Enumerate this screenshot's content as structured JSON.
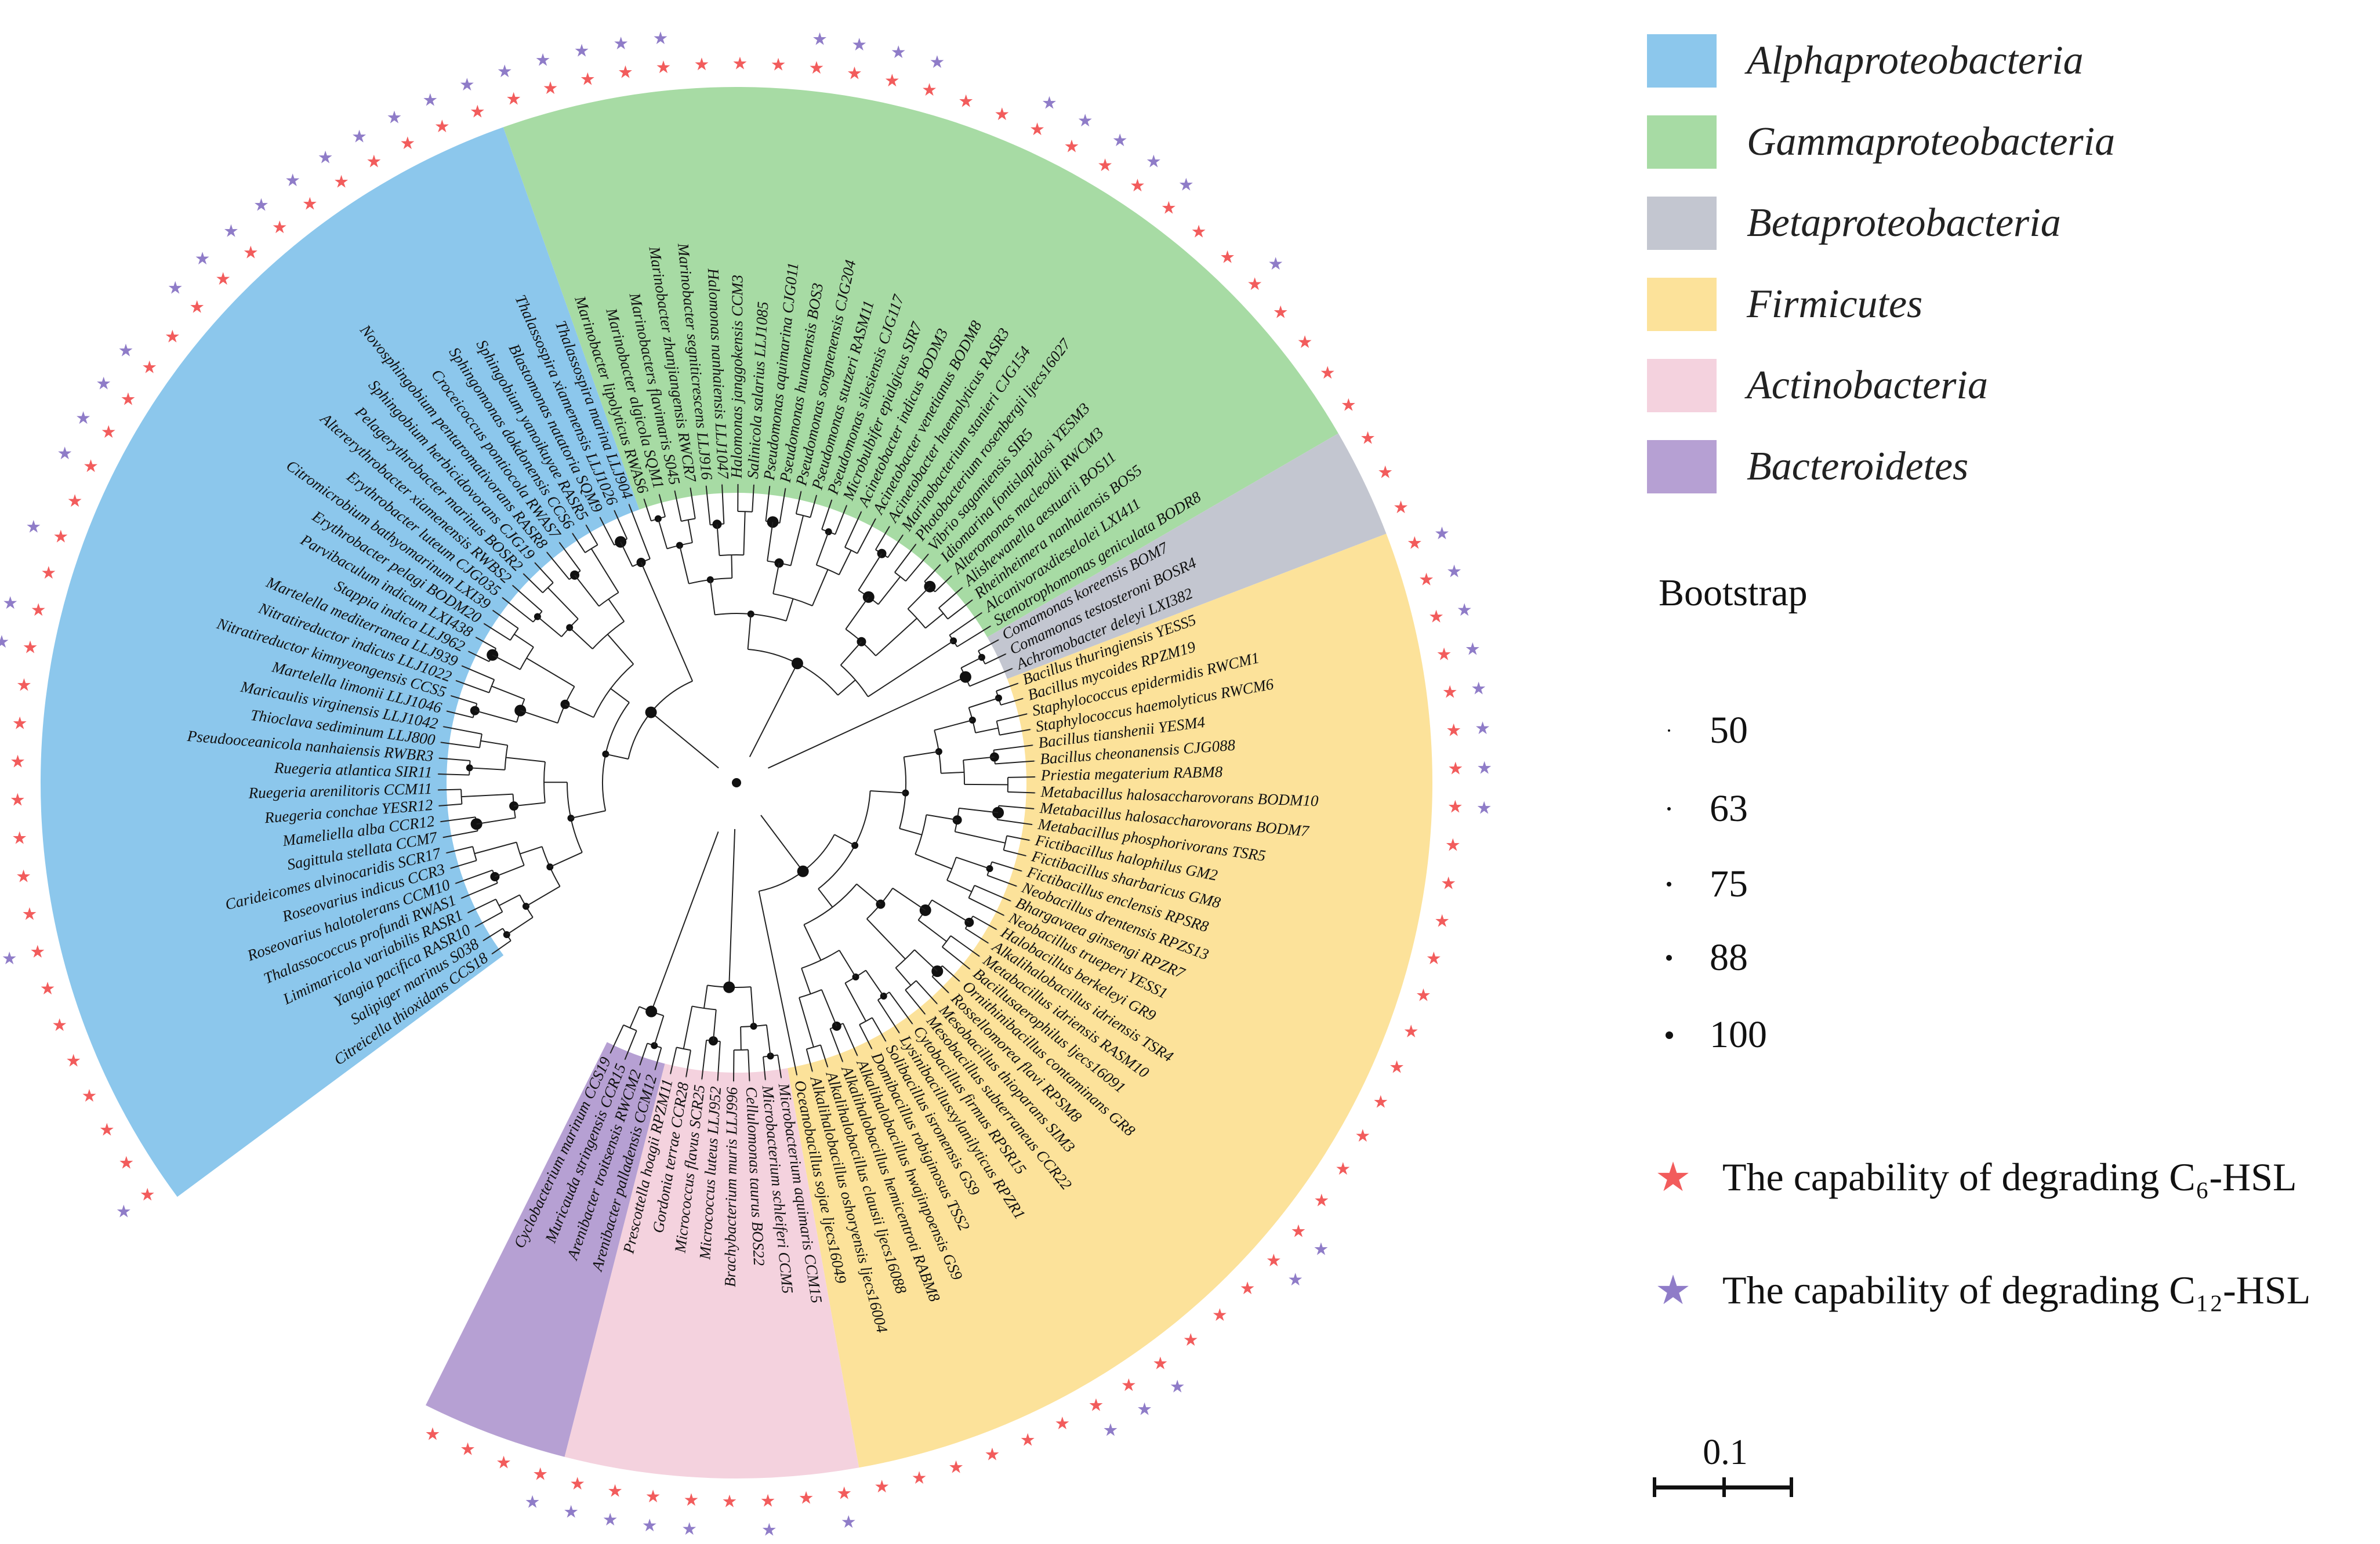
{
  "groups": [
    {
      "name": "Alphaproteobacteria",
      "color": "#8CC7EC"
    },
    {
      "name": "Gammaproteobacteria",
      "color": "#A7DBA4"
    },
    {
      "name": "Betaproteobacteria",
      "color": "#C3C6D0"
    },
    {
      "name": "Firmicutes",
      "color": "#FCE29A"
    },
    {
      "name": "Actinobacteria",
      "color": "#F4D2DE"
    },
    {
      "name": "Bacteroidetes",
      "color": "#B6A0D3"
    }
  ],
  "bootstrap": {
    "title": "Bootstrap",
    "levels": [
      "50",
      "63",
      "75",
      "88",
      "100"
    ]
  },
  "stars": [
    {
      "label": "The capability of degrading C₆-HSL",
      "color": "#F25C5C",
      "icon": "red-star-icon"
    },
    {
      "label": "The capability of degrading C₁₂-HSL",
      "color": "#8F7CC8",
      "icon": "purple-star-icon"
    }
  ],
  "scale_bar": {
    "label": "0.1"
  },
  "taxa": [
    {
      "name": "Citreicella thioxidans CCS18",
      "group": 0,
      "c6": true,
      "c12": true
    },
    {
      "name": "Salipiger marinus S038",
      "group": 0,
      "c6": true,
      "c12": false
    },
    {
      "name": "Yangia pacifica RASR10",
      "group": 0,
      "c6": true,
      "c12": false
    },
    {
      "name": "Limimaricola variabilis RASR1",
      "group": 0,
      "c6": true,
      "c12": false
    },
    {
      "name": "Thalassococcus profundi RWAS1",
      "group": 0,
      "c6": true,
      "c12": false
    },
    {
      "name": "Roseovarius halotolerans CCM10",
      "group": 0,
      "c6": true,
      "c12": false
    },
    {
      "name": "Roseovarius indicus CCR3",
      "group": 0,
      "c6": true,
      "c12": false
    },
    {
      "name": "Carideicomes alvinocaridis SCR17",
      "group": 0,
      "c6": true,
      "c12": true
    },
    {
      "name": "Sagittula stellata CCM7",
      "group": 0,
      "c6": true,
      "c12": false
    },
    {
      "name": "Mameliella alba CCR12",
      "group": 0,
      "c6": true,
      "c12": false
    },
    {
      "name": "Ruegeria conchae YESR12",
      "group": 0,
      "c6": true,
      "c12": false
    },
    {
      "name": "Ruegeria arenilitoris CCM11",
      "group": 0,
      "c6": true,
      "c12": false
    },
    {
      "name": "Ruegeria atlantica SIR11",
      "group": 0,
      "c6": true,
      "c12": true
    },
    {
      "name": "Pseudooceanicola nanhaiensis RWBR3",
      "group": 0,
      "c6": true,
      "c12": true
    },
    {
      "name": "Thioclava sediminum LLJ800",
      "group": 0,
      "c6": true,
      "c12": false
    },
    {
      "name": "Maricaulis virginensis LLJ1042",
      "group": 0,
      "c6": true,
      "c12": true
    },
    {
      "name": "Martelella limonii LLJ1046",
      "group": 0,
      "c6": true,
      "c12": true
    },
    {
      "name": "Nitratireductor kimnyeongensis CCS5",
      "group": 0,
      "c6": true,
      "c12": false
    },
    {
      "name": "Nitratireductor indicus LLJ1022",
      "group": 0,
      "c6": true,
      "c12": true
    },
    {
      "name": "Martelella mediterranea LLJ939",
      "group": 0,
      "c6": true,
      "c12": false
    },
    {
      "name": "Stappia indica LLJ962",
      "group": 0,
      "c6": true,
      "c12": true
    },
    {
      "name": "Parvibaculum indicum LXI438",
      "group": 0,
      "c6": true,
      "c12": true
    },
    {
      "name": "Erythrobacter pelagi BODM20",
      "group": 0,
      "c6": true,
      "c12": true
    },
    {
      "name": "Citromicrobium bathyomarinum LXI39",
      "group": 0,
      "c6": true,
      "c12": true
    },
    {
      "name": "Erythrobacter luteum CJG035",
      "group": 0,
      "c6": true,
      "c12": false
    },
    {
      "name": "Altererythrobacter xiamenensis RWBS2",
      "group": 0,
      "c6": true,
      "c12": true
    },
    {
      "name": "Pelagerythrobacter marinus BOSR2",
      "group": 0,
      "c6": true,
      "c12": true
    },
    {
      "name": "Sphingobium herbicidovorans CJG19",
      "group": 0,
      "c6": true,
      "c12": true
    },
    {
      "name": "Novosphingobium pentaromativorans RASR8",
      "group": 0,
      "c6": true,
      "c12": true
    },
    {
      "name": "Croceicoccus pontiocola RWAS7",
      "group": 0,
      "c6": true,
      "c12": true
    },
    {
      "name": "Sphingomonas dokdonensis CCS6",
      "group": 0,
      "c6": true,
      "c12": true
    },
    {
      "name": "Sphingobium yanoikuyae RASR5",
      "group": 0,
      "c6": true,
      "c12": true
    },
    {
      "name": "Blastomonas natatoria SQM9",
      "group": 0,
      "c6": true,
      "c12": true
    },
    {
      "name": "Thalassospira xiamenensis LLJ1026",
      "group": 0,
      "c6": true,
      "c12": true
    },
    {
      "name": "Thalassospira marina LLJ904",
      "group": 0,
      "c6": true,
      "c12": true
    },
    {
      "name": "Marinobacter lipolyticus RWAS6",
      "group": 1,
      "c6": true,
      "c12": true
    },
    {
      "name": "Marinobacter algicola SQM1",
      "group": 1,
      "c6": true,
      "c12": true
    },
    {
      "name": "Marinobacters flavimaris S045",
      "group": 1,
      "c6": true,
      "c12": true
    },
    {
      "name": "Marinobacter zhanjiangensis RWCR7",
      "group": 1,
      "c6": true,
      "c12": true
    },
    {
      "name": "Marinobacter segniticrescens LLJ916",
      "group": 1,
      "c6": true,
      "c12": true
    },
    {
      "name": "Halomonas nanhaiensis LLJ1047",
      "group": 1,
      "c6": true,
      "c12": false
    },
    {
      "name": "Halomonas janggokensis CCM3",
      "group": 1,
      "c6": true,
      "c12": false
    },
    {
      "name": "Salinicola salarius LLJ1085",
      "group": 1,
      "c6": true,
      "c12": false
    },
    {
      "name": "Pseudomonas aquimarina CJG011",
      "group": 1,
      "c6": true,
      "c12": true
    },
    {
      "name": "Pseudomonas hunanensis BOS3",
      "group": 1,
      "c6": true,
      "c12": true
    },
    {
      "name": "Pseudomonas songnenensis CJG204",
      "group": 1,
      "c6": true,
      "c12": true
    },
    {
      "name": "Pseudomonas stutzeri RASM11",
      "group": 1,
      "c6": true,
      "c12": true
    },
    {
      "name": "Pseudomonas silesiensis CJG117",
      "group": 1,
      "c6": true,
      "c12": false
    },
    {
      "name": "Microbulbifer epialgicus SIR7",
      "group": 1,
      "c6": true,
      "c12": false
    },
    {
      "name": "Acinetobacter indicus BODM3",
      "group": 1,
      "c6": true,
      "c12": true
    },
    {
      "name": "Acinetobacter venetianus BODM8",
      "group": 1,
      "c6": true,
      "c12": true
    },
    {
      "name": "Acinetobacter haemolyticus RASR3",
      "group": 1,
      "c6": true,
      "c12": true
    },
    {
      "name": "Marinobacterium stanieri CJG154",
      "group": 1,
      "c6": true,
      "c12": true
    },
    {
      "name": "Photobacterium rosenbergii ljecs16027",
      "group": 1,
      "c6": true,
      "c12": true
    },
    {
      "name": "Vibrio sagamiensis SIR5",
      "group": 1,
      "c6": true,
      "c12": false
    },
    {
      "name": "Idiomarina fontislapidosi YESM3",
      "group": 1,
      "c6": true,
      "c12": false
    },
    {
      "name": "Alteromonas macleodii RWCM3",
      "group": 1,
      "c6": true,
      "c12": true
    },
    {
      "name": "Alishewanella aestuarii BOS11",
      "group": 1,
      "c6": true,
      "c12": false
    },
    {
      "name": "Rheinheimera nanhaiensis BOS5",
      "group": 1,
      "c6": true,
      "c12": false
    },
    {
      "name": "Alcanivoraxdieselolei LXI411",
      "group": 1,
      "c6": true,
      "c12": false
    },
    {
      "name": "Stenotrophomonas geniculata BODR8",
      "group": 1,
      "c6": true,
      "c12": false
    },
    {
      "name": "Comamonas koreensis BOM7",
      "group": 2,
      "c6": true,
      "c12": false
    },
    {
      "name": "Comamonas testosteroni BOSR4",
      "group": 2,
      "c6": true,
      "c12": false
    },
    {
      "name": "Achromobacter deleyi LXI382",
      "group": 2,
      "c6": true,
      "c12": false
    },
    {
      "name": "Bacillus thuringiensis YESS5",
      "group": 3,
      "c6": true,
      "c12": true
    },
    {
      "name": "Bacillus mycoides RPZM19",
      "group": 3,
      "c6": true,
      "c12": true
    },
    {
      "name": "Staphylococcus epidermidis RWCM1",
      "group": 3,
      "c6": true,
      "c12": true
    },
    {
      "name": "Staphylococcus haemolyticus RWCM6",
      "group": 3,
      "c6": true,
      "c12": true
    },
    {
      "name": "Bacillus tianshenii YESM4",
      "group": 3,
      "c6": true,
      "c12": true
    },
    {
      "name": "Bacillus cheonanensis CJG088",
      "group": 3,
      "c6": true,
      "c12": true
    },
    {
      "name": "Priestia megaterium RABM8",
      "group": 3,
      "c6": true,
      "c12": true
    },
    {
      "name": "Metabacillus halosaccharovorans BODM10",
      "group": 3,
      "c6": true,
      "c12": true
    },
    {
      "name": "Metabacillus halosaccharovorans BODM7",
      "group": 3,
      "c6": true,
      "c12": false
    },
    {
      "name": "Metabacillus phosphorivorans TSR5",
      "group": 3,
      "c6": true,
      "c12": false
    },
    {
      "name": "Fictibacillus halophilus GM2",
      "group": 3,
      "c6": true,
      "c12": false
    },
    {
      "name": "Fictibacillus sharbaricus GM8",
      "group": 3,
      "c6": true,
      "c12": false
    },
    {
      "name": "Fictibacillus enclensis RPSR8",
      "group": 3,
      "c6": true,
      "c12": false
    },
    {
      "name": "Neobacillus drentensis RPZS13",
      "group": 3,
      "c6": true,
      "c12": false
    },
    {
      "name": "Bhargavaea ginsengi RPZR7",
      "group": 3,
      "c6": true,
      "c12": false
    },
    {
      "name": "Neobacillus trueperi YESS1",
      "group": 3,
      "c6": true,
      "c12": false
    },
    {
      "name": "Halobacillus berkeleyi GR9",
      "group": 3,
      "c6": true,
      "c12": false
    },
    {
      "name": "Alkalihalobacillus idriensis TSR4",
      "group": 3,
      "c6": true,
      "c12": false
    },
    {
      "name": "Metabacillus idriensis RASM10",
      "group": 3,
      "c6": true,
      "c12": false
    },
    {
      "name": "Bacillusaerophilus ljecs16091",
      "group": 3,
      "c6": true,
      "c12": true
    },
    {
      "name": "Ornithinibacillus contaminans GR8",
      "group": 3,
      "c6": true,
      "c12": true
    },
    {
      "name": "Rossellomorea flavi RPSM8",
      "group": 3,
      "c6": true,
      "c12": false
    },
    {
      "name": "Mesobacillus thioparans SIM3",
      "group": 3,
      "c6": true,
      "c12": false
    },
    {
      "name": "Mesobacillus subterraneus CCR22",
      "group": 3,
      "c6": true,
      "c12": false
    },
    {
      "name": "Cytobacillus firmus RPSR15",
      "group": 3,
      "c6": true,
      "c12": true
    },
    {
      "name": "Lysinibacillusxylanilyticus RPZR1",
      "group": 3,
      "c6": true,
      "c12": true
    },
    {
      "name": "Solibacillus isronensis GS9",
      "group": 3,
      "c6": true,
      "c12": true
    },
    {
      "name": "Domibacillus robiginosus TSS2",
      "group": 3,
      "c6": true,
      "c12": false
    },
    {
      "name": "Alkalihalobacillus hwajinpoensis GS9",
      "group": 3,
      "c6": true,
      "c12": false
    },
    {
      "name": "Alkalihalobacillus hemicentroti RABM8",
      "group": 3,
      "c6": true,
      "c12": false
    },
    {
      "name": "Alkalihalobacillus clausii ljecs16088",
      "group": 3,
      "c6": true,
      "c12": false
    },
    {
      "name": "Alkalihalobacillus oshoryensis ljecs16004",
      "group": 3,
      "c6": true,
      "c12": false
    },
    {
      "name": "Oceanobacillus sojae ljecs16049",
      "group": 3,
      "c6": true,
      "c12": false
    },
    {
      "name": "Microbacterium aquimaris CCM15",
      "group": 4,
      "c6": true,
      "c12": true
    },
    {
      "name": "Microbacterium schleiferi CCM5",
      "group": 4,
      "c6": true,
      "c12": false
    },
    {
      "name": "Cellulomonas taurus BOS22",
      "group": 4,
      "c6": true,
      "c12": true
    },
    {
      "name": "Brachybacterium muris LLJ996",
      "group": 4,
      "c6": true,
      "c12": false
    },
    {
      "name": "Micrococcus luteus LLJ952",
      "group": 4,
      "c6": true,
      "c12": true
    },
    {
      "name": "Micrococcus flavus SCR25",
      "group": 4,
      "c6": true,
      "c12": true
    },
    {
      "name": "Gordonia terrae CCR28",
      "group": 4,
      "c6": true,
      "c12": true
    },
    {
      "name": "Prescottella hoagii RPZM11",
      "group": 4,
      "c6": true,
      "c12": true
    },
    {
      "name": "Arenibacter palladensis CCM12",
      "group": 5,
      "c6": true,
      "c12": true
    },
    {
      "name": "Arenibacter troitsensis RWCM2",
      "group": 5,
      "c6": true,
      "c12": false
    },
    {
      "name": "Muricauda stringensis CCR15",
      "group": 5,
      "c6": true,
      "c12": false
    },
    {
      "name": "Cyclobacterium marinum CCS19",
      "group": 5,
      "c6": true,
      "c12": false
    }
  ]
}
